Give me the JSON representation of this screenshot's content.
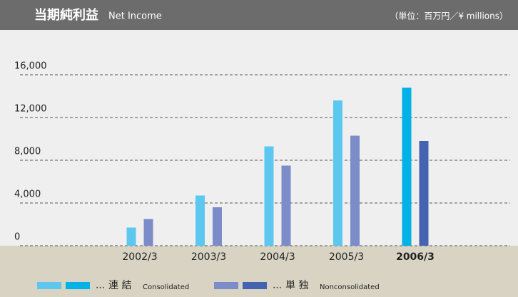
{
  "chart_data": {
    "type": "bar",
    "title": "当期純利益",
    "subtitle": "Net Income",
    "unit": "（単位：百万円／¥ millions）",
    "categories": [
      "2002/3",
      "2003/3",
      "2004/3",
      "2005/3",
      "2006/3"
    ],
    "series": [
      {
        "name": "連 結",
        "name_en": "Consolidated",
        "colors": [
          "#5cc8f0",
          "#5cc8f0",
          "#5cc8f0",
          "#5cc8f0",
          "#00b2e6"
        ],
        "values": [
          1700,
          4700,
          9300,
          13600,
          14800
        ]
      },
      {
        "name": "単 独",
        "name_en": "Nonconsolidated",
        "colors": [
          "#7b8cc8",
          "#7b8cc8",
          "#7b8cc8",
          "#7b8cc8",
          "#4463b0"
        ],
        "values": [
          2500,
          3600,
          7500,
          10300,
          9800
        ]
      }
    ],
    "legend_separator": "…",
    "ylim": [
      0,
      18000
    ],
    "yticks": [
      0,
      {
        "value": 4000,
        "label": "4,000"
      },
      {
        "value": 8000,
        "label": "8,000"
      },
      {
        "value": 12000,
        "label": "12,000"
      },
      {
        "value": 16000,
        "label": "16,000"
      }
    ],
    "grid": true
  }
}
